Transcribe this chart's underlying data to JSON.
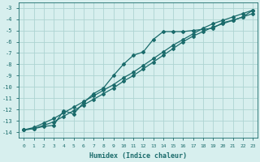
{
  "xlabel": "Humidex (Indice chaleur)",
  "xlim": [
    -0.5,
    23.5
  ],
  "ylim": [
    -14.5,
    -2.5
  ],
  "yticks": [
    -14,
    -13,
    -12,
    -11,
    -10,
    -9,
    -8,
    -7,
    -6,
    -5,
    -4,
    -3
  ],
  "xticks": [
    0,
    1,
    2,
    3,
    4,
    5,
    6,
    7,
    8,
    9,
    10,
    11,
    12,
    13,
    14,
    15,
    16,
    17,
    18,
    19,
    20,
    21,
    22,
    23
  ],
  "background_color": "#d7efee",
  "grid_color": "#aed4d2",
  "line_color": "#1a6b6b",
  "line_jagged_y": [
    -13.8,
    -13.7,
    -13.5,
    -13.4,
    -12.1,
    -12.4,
    -11.4,
    -10.6,
    -10.1,
    -9.0,
    -8.0,
    -7.2,
    -6.9,
    -5.8,
    -5.1,
    -5.1,
    -5.1,
    -5.0,
    -4.9,
    -4.8,
    -4.3,
    -4.1,
    -3.8,
    -3.2
  ],
  "line_diag1_y": [
    -13.8,
    -13.7,
    -13.4,
    -13.1,
    -12.6,
    -12.1,
    -11.6,
    -11.1,
    -10.6,
    -10.1,
    -9.5,
    -9.0,
    -8.4,
    -7.8,
    -7.2,
    -6.6,
    -6.0,
    -5.5,
    -5.1,
    -4.7,
    -4.4,
    -4.1,
    -3.8,
    -3.5
  ],
  "line_diag2_y": [
    -13.8,
    -13.6,
    -13.2,
    -12.8,
    -12.3,
    -11.8,
    -11.3,
    -10.8,
    -10.3,
    -9.8,
    -9.2,
    -8.7,
    -8.1,
    -7.5,
    -6.9,
    -6.3,
    -5.8,
    -5.3,
    -4.8,
    -4.4,
    -4.1,
    -3.8,
    -3.5,
    -3.2
  ]
}
